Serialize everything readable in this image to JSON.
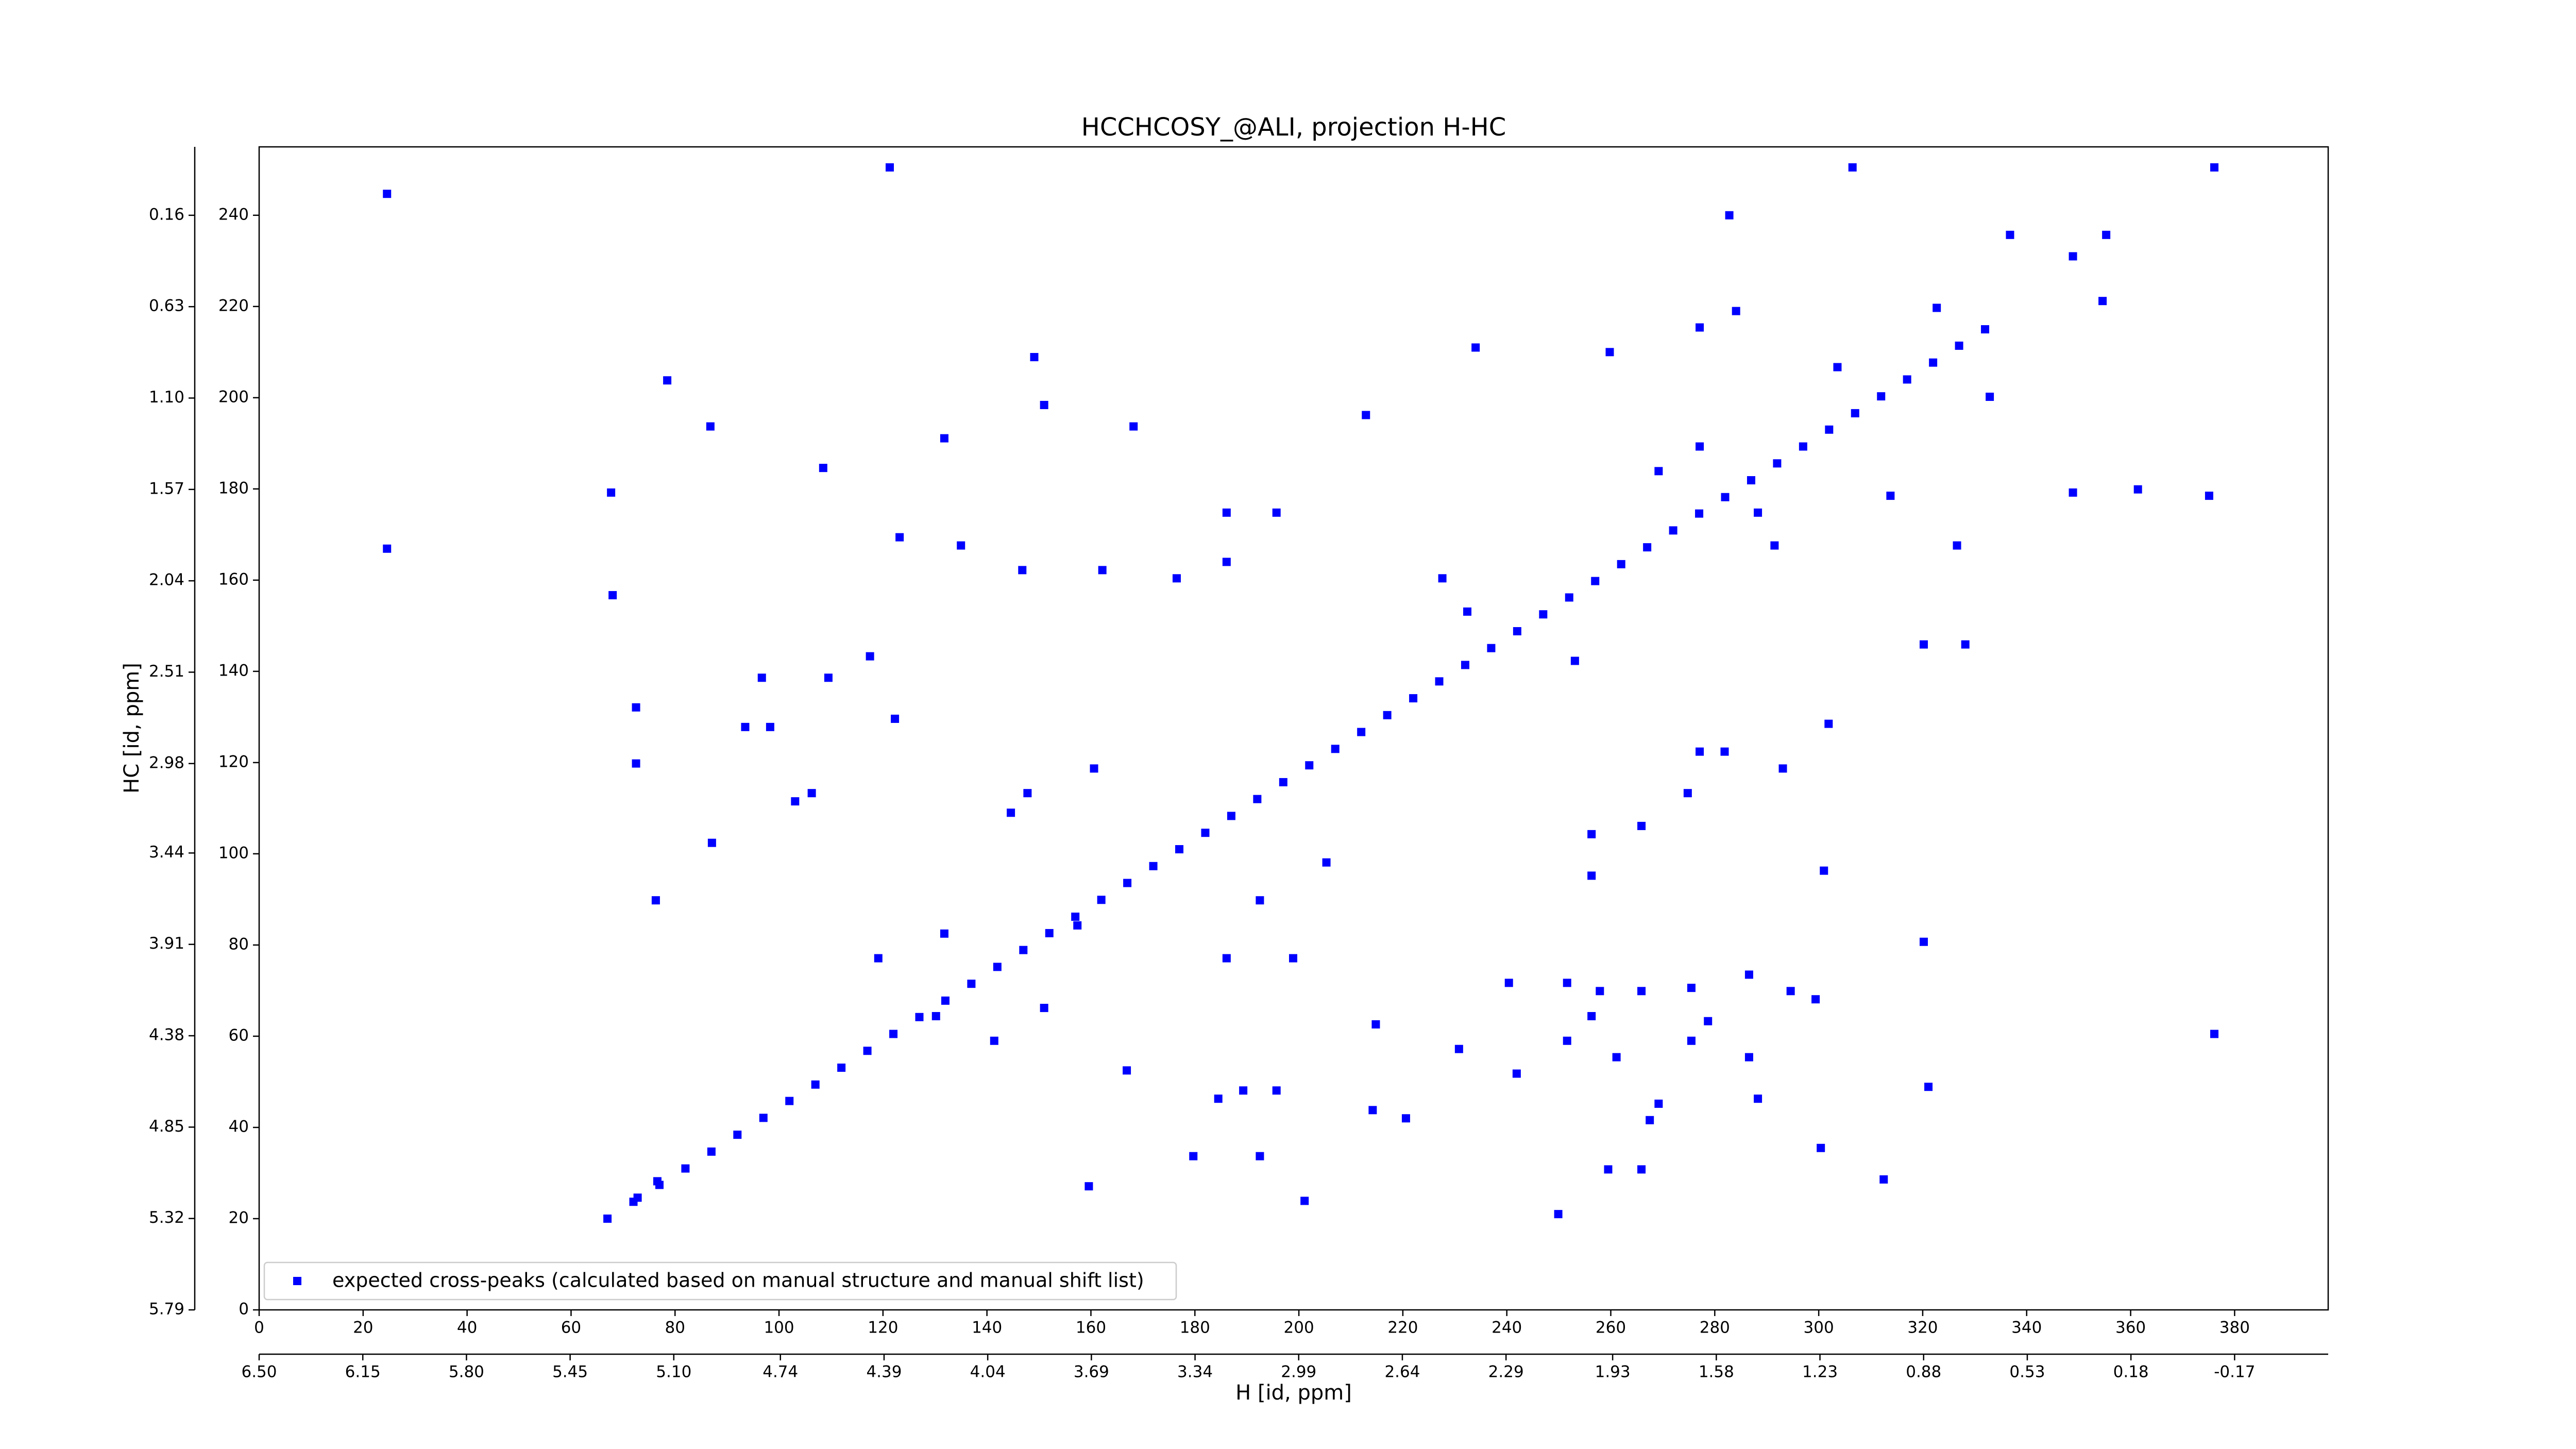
{
  "chart_data": {
    "type": "scatter",
    "title": "HCCHCOSY_@ALI, projection H-HC",
    "x_label": "H [id, ppm]",
    "y_label": "HC [id, ppm]",
    "xlim": [
      0,
      398
    ],
    "xticks": [
      0,
      20,
      40,
      60,
      80,
      100,
      120,
      140,
      160,
      180,
      200,
      220,
      240,
      260,
      280,
      300,
      320,
      340,
      360,
      380
    ],
    "ylim": [
      0,
      255
    ],
    "yticks": [
      0,
      20,
      40,
      60,
      80,
      100,
      120,
      140,
      160,
      180,
      200,
      220,
      240
    ],
    "x2lim": [
      6.5,
      -0.486
    ],
    "x2ticks": [
      {
        "value": 6.5,
        "label": "6.50"
      },
      6.15,
      {
        "value": 5.8,
        "label": "5.80"
      },
      5.45,
      {
        "value": 5.1,
        "label": "5.10"
      },
      4.74,
      4.39,
      4.04,
      3.69,
      3.34,
      2.99,
      2.64,
      2.29,
      1.93,
      1.58,
      1.23,
      0.88,
      0.53,
      0.18,
      -0.17
    ],
    "y2lim": [
      5.79,
      -0.192
    ],
    "y2ticks": [
      5.79,
      5.32,
      4.85,
      4.38,
      3.91,
      3.44,
      2.98,
      2.51,
      2.04,
      1.57,
      {
        "value": 1.1,
        "label": "1.10"
      },
      0.63,
      0.16
    ],
    "legend": "lower left",
    "series": [
      {
        "name": "expected cross-peaks (calculated based on manual structure and manual shift list)",
        "color": "#0000ff",
        "x": [
          67,
          72,
          77,
          82,
          87,
          92,
          97,
          102,
          107,
          112,
          117,
          122,
          127,
          132,
          137,
          142,
          147,
          152,
          157,
          162,
          167,
          172,
          177,
          182,
          187,
          192,
          197,
          202,
          207,
          212,
          217,
          222,
          227,
          232,
          237,
          242,
          247,
          252,
          257,
          262,
          267,
          272,
          277,
          282,
          287,
          292,
          297,
          302,
          307,
          312,
          317,
          322,
          327,
          332,
          24.6,
          121.3,
          306.5,
          376.1,
          282.8,
          336.8,
          355.3,
          348.9,
          354.6,
          375.1,
          361.4,
          348.9,
          277.1,
          284.1,
          234,
          259.8,
          149.1,
          78.5,
          212.9,
          168.2,
          131.8,
          86.8,
          67.7,
          24.6,
          68,
          108.5,
          123.2,
          135,
          146.8,
          162.2,
          176.5,
          186.1,
          195.7,
          151,
          277.1,
          269.2,
          288.3,
          291.5,
          313.8,
          326.6,
          320.2,
          328.2,
          253.1,
          227.6,
          232.4,
          96.7,
          109.5,
          117.5,
          122.3,
          72.5,
          72.5,
          106.3,
          144.6,
          160.6,
          277.1,
          281.9,
          274.8,
          301.9,
          293.1,
          265.9,
          256.3,
          256.3,
          301,
          205.3,
          192.5,
          76.3,
          119.1,
          131.8,
          186.1,
          198.9,
          240.4,
          251.6,
          257.9,
          265.9,
          275.5,
          286.6,
          294.6,
          299.4,
          320.2,
          251.6,
          256.3,
          261.1,
          275.5,
          278.7,
          286.6,
          376.1,
          151,
          141.4,
          130.2,
          166.9,
          189.3,
          195.7,
          184.5,
          214.8,
          230.8,
          241.9,
          269.2,
          288.3,
          267.5,
          321.1,
          300.4,
          179.7,
          192.5,
          220.6,
          214.2,
          259.5,
          265.9,
          312.5,
          249.9,
          201.1,
          159.6,
          76.6,
          72.8,
          303.6,
          322.7,
          332.9,
          186.1,
          147.8,
          87.1,
          93.5,
          98.3,
          103.1,
          157.4
        ],
        "values": [
          20,
          23.7,
          27.4,
          31,
          34.7,
          38.4,
          42.1,
          45.8,
          49.4,
          53.1,
          56.8,
          60.5,
          64.2,
          67.8,
          71.5,
          75.2,
          78.9,
          82.6,
          86.2,
          89.9,
          93.6,
          97.3,
          101,
          104.6,
          108.3,
          112,
          115.7,
          119.4,
          123,
          126.7,
          130.4,
          134.1,
          137.8,
          141.4,
          145.1,
          148.8,
          152.5,
          156.2,
          159.8,
          163.5,
          167.2,
          170.9,
          174.6,
          178.2,
          181.9,
          185.6,
          189.3,
          193,
          196.6,
          200.3,
          204,
          207.7,
          211.4,
          215,
          244.7,
          250.5,
          250.5,
          250.5,
          240,
          235.7,
          235.7,
          231,
          221.2,
          178.5,
          179.9,
          179.2,
          215.4,
          219,
          211,
          210,
          208.9,
          203.8,
          196.2,
          193.7,
          191.1,
          193.7,
          179.2,
          166.9,
          156.7,
          184.6,
          169.4,
          167.6,
          162.2,
          162.2,
          160.4,
          174.8,
          174.8,
          198.4,
          189.3,
          183.9,
          174.8,
          167.6,
          178.5,
          167.6,
          145.9,
          145.9,
          142.3,
          160.4,
          153.1,
          138.6,
          138.6,
          143.3,
          129.6,
          132.1,
          119.8,
          113.3,
          109,
          118.7,
          122.4,
          122.4,
          113.3,
          128.5,
          118.7,
          106.1,
          104.3,
          95.2,
          96.3,
          98.1,
          89.8,
          89.8,
          77.1,
          82.5,
          77.1,
          77.1,
          71.7,
          71.7,
          69.9,
          69.9,
          70.6,
          73.5,
          69.9,
          68.1,
          80.7,
          59,
          64.4,
          55.4,
          59,
          63.3,
          55.4,
          60.5,
          66.2,
          59,
          64.4,
          52.5,
          48.1,
          48.1,
          46.3,
          62.6,
          57.2,
          51.8,
          45.2,
          46.3,
          41.6,
          48.9,
          35.5,
          33.7,
          33.7,
          42,
          43.8,
          30.8,
          30.8,
          28.6,
          21,
          23.9,
          27.1,
          28.2,
          24.6,
          206.7,
          219.7,
          200.2,
          164,
          113.3,
          102.4,
          127.8,
          127.8,
          111.5,
          84.3
        ]
      }
    ]
  }
}
